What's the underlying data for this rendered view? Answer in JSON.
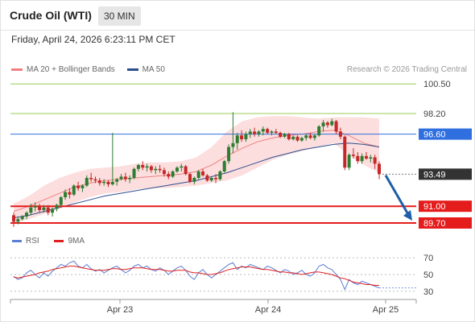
{
  "header": {
    "title": "Crude Oil (WTI)",
    "timeframe": "30 MIN",
    "timestamp": "Friday, April 24, 2026 6:23:11 PM CET"
  },
  "legend": {
    "items": [
      {
        "label": "MA 20 + Bollinger Bands",
        "color": "#f08080"
      },
      {
        "label": "MA 50",
        "color": "#2c4e8f"
      }
    ],
    "credit": "Research © 2026 Trading Central"
  },
  "rsi_legend": {
    "items": [
      {
        "label": "RSI",
        "color": "#5b7fd4"
      },
      {
        "label": "9MA",
        "color": "#e02020"
      }
    ]
  },
  "colors": {
    "bull": "#2e7d32",
    "bear": "#c62828",
    "resistance_line": "#9acd5a",
    "pivot_line": "#2f6fe0",
    "support_line": "#e51c1c",
    "last_price": "#333333",
    "arrow": "#1f5ea8"
  },
  "chart_data": [
    {
      "type": "candlestick",
      "title": "Crude Oil (WTI)",
      "interval": "30 MIN",
      "x_ticks": [
        "Apr 23",
        "Apr 24",
        "Apr 25"
      ],
      "ylim": [
        89.2,
        101.2
      ],
      "candles": [
        [
          90.3,
          90.5,
          89.4,
          89.8
        ],
        [
          89.8,
          90.2,
          89.6,
          90.0
        ],
        [
          90.0,
          90.3,
          89.9,
          90.2
        ],
        [
          90.2,
          90.6,
          90.0,
          90.5
        ],
        [
          90.5,
          91.2,
          90.3,
          90.9
        ],
        [
          90.9,
          91.3,
          90.6,
          91.0
        ],
        [
          91.0,
          91.2,
          90.5,
          90.7
        ],
        [
          90.7,
          91.1,
          90.5,
          90.9
        ],
        [
          90.9,
          91.1,
          90.3,
          90.5
        ],
        [
          90.5,
          90.9,
          90.2,
          90.8
        ],
        [
          90.8,
          91.2,
          90.6,
          91.1
        ],
        [
          91.1,
          91.8,
          91.0,
          91.7
        ],
        [
          91.7,
          92.3,
          91.5,
          92.1
        ],
        [
          92.1,
          92.4,
          91.6,
          91.9
        ],
        [
          91.9,
          92.7,
          91.8,
          92.6
        ],
        [
          92.6,
          92.9,
          92.2,
          92.4
        ],
        [
          92.4,
          92.7,
          92.1,
          92.6
        ],
        [
          92.6,
          93.4,
          92.5,
          93.2
        ],
        [
          93.2,
          93.6,
          92.9,
          93.1
        ],
        [
          93.1,
          93.3,
          92.8,
          93.0
        ],
        [
          93.0,
          93.2,
          92.6,
          92.8
        ],
        [
          92.8,
          93.1,
          92.6,
          92.9
        ],
        [
          92.9,
          93.0,
          92.5,
          92.7
        ],
        [
          92.7,
          96.7,
          92.6,
          92.9
        ],
        [
          92.9,
          93.2,
          92.6,
          93.1
        ],
        [
          93.1,
          93.5,
          93.0,
          93.3
        ],
        [
          93.3,
          93.6,
          92.9,
          93.1
        ],
        [
          93.1,
          93.4,
          92.8,
          93.2
        ],
        [
          93.2,
          94.0,
          93.1,
          93.9
        ],
        [
          93.9,
          94.3,
          93.7,
          94.2
        ],
        [
          94.2,
          94.5,
          93.8,
          94.0
        ],
        [
          94.0,
          94.3,
          93.7,
          94.1
        ],
        [
          94.1,
          94.2,
          93.6,
          93.8
        ],
        [
          93.8,
          94.1,
          93.5,
          93.9
        ],
        [
          93.9,
          94.2,
          93.6,
          93.8
        ],
        [
          93.8,
          94.0,
          93.3,
          93.5
        ],
        [
          93.5,
          93.7,
          93.1,
          93.3
        ],
        [
          93.3,
          93.8,
          93.2,
          93.7
        ],
        [
          93.7,
          94.1,
          93.6,
          94.0
        ],
        [
          94.0,
          94.3,
          93.7,
          94.1
        ],
        [
          94.1,
          94.2,
          93.4,
          93.5
        ],
        [
          93.5,
          93.6,
          92.8,
          92.9
        ],
        [
          92.9,
          93.3,
          92.7,
          93.2
        ],
        [
          93.2,
          93.8,
          93.1,
          93.7
        ],
        [
          93.7,
          93.9,
          93.3,
          93.4
        ],
        [
          93.4,
          93.5,
          92.9,
          93.0
        ],
        [
          93.0,
          93.3,
          92.9,
          93.2
        ],
        [
          93.2,
          93.5,
          92.8,
          93.1
        ],
        [
          93.1,
          93.8,
          93.0,
          93.7
        ],
        [
          93.7,
          94.6,
          93.6,
          94.5
        ],
        [
          94.5,
          95.8,
          94.3,
          95.6
        ],
        [
          95.6,
          98.3,
          95.1,
          95.9
        ],
        [
          95.9,
          96.7,
          95.4,
          96.5
        ],
        [
          96.5,
          96.9,
          96.0,
          96.2
        ],
        [
          96.2,
          96.8,
          96.0,
          96.6
        ],
        [
          96.6,
          97.0,
          96.3,
          96.8
        ],
        [
          96.8,
          97.1,
          96.4,
          96.6
        ],
        [
          96.6,
          96.9,
          96.4,
          96.8
        ],
        [
          96.8,
          97.2,
          96.5,
          97.0
        ],
        [
          97.0,
          97.1,
          96.6,
          96.7
        ],
        [
          96.7,
          96.9,
          96.5,
          96.8
        ],
        [
          96.8,
          97.0,
          96.6,
          96.7
        ],
        [
          96.7,
          96.8,
          96.3,
          96.4
        ],
        [
          96.4,
          96.7,
          96.3,
          96.6
        ],
        [
          96.6,
          96.7,
          96.1,
          96.2
        ],
        [
          96.2,
          96.5,
          96.1,
          96.4
        ],
        [
          96.4,
          96.5,
          96.0,
          96.1
        ],
        [
          96.1,
          96.4,
          96.0,
          96.3
        ],
        [
          96.3,
          96.6,
          96.1,
          96.5
        ],
        [
          96.5,
          96.7,
          96.2,
          96.3
        ],
        [
          96.3,
          96.6,
          96.1,
          96.5
        ],
        [
          96.5,
          97.3,
          96.4,
          97.2
        ],
        [
          97.2,
          97.7,
          96.8,
          97.5
        ],
        [
          97.5,
          97.6,
          97.1,
          97.3
        ],
        [
          97.3,
          97.8,
          97.2,
          97.6
        ],
        [
          97.6,
          97.7,
          96.6,
          96.8
        ],
        [
          96.8,
          97.1,
          96.2,
          96.4
        ],
        [
          96.4,
          96.5,
          93.8,
          94.0
        ],
        [
          94.0,
          95.1,
          93.8,
          95.0
        ],
        [
          95.0,
          95.5,
          94.7,
          94.9
        ],
        [
          94.9,
          95.2,
          94.3,
          94.5
        ],
        [
          94.5,
          95.1,
          94.3,
          94.9
        ],
        [
          94.9,
          95.2,
          94.6,
          94.7
        ],
        [
          94.7,
          95.0,
          94.4,
          94.8
        ],
        [
          94.8,
          95.0,
          93.9,
          94.3
        ],
        [
          94.3,
          94.5,
          93.1,
          93.49
        ]
      ],
      "bollinger": {
        "ma20": [
          90.6,
          91.0,
          91.5,
          92.0,
          92.5,
          92.8,
          93.0,
          93.1,
          93.2,
          93.3,
          93.4,
          93.5,
          93.7,
          94.2,
          94.9,
          95.5,
          96.0,
          96.3,
          96.5,
          96.6,
          96.8,
          96.9,
          96.5,
          95.9,
          95.6
        ],
        "upper": [
          91.2,
          91.8,
          92.6,
          93.2,
          93.6,
          93.9,
          94.0,
          94.1,
          94.3,
          94.4,
          94.4,
          94.5,
          94.8,
          95.6,
          96.8,
          97.6,
          97.9,
          98.0,
          98.0,
          97.9,
          97.8,
          97.9,
          97.9,
          97.9,
          97.8
        ],
        "lower": [
          89.7,
          90.0,
          90.4,
          90.8,
          91.3,
          91.7,
          92.0,
          92.1,
          92.3,
          92.4,
          92.4,
          92.5,
          92.6,
          92.8,
          93.0,
          93.4,
          94.0,
          94.6,
          95.0,
          95.3,
          95.6,
          95.9,
          95.0,
          94.2,
          93.6
        ]
      },
      "ma50": [
        90.1,
        90.3,
        90.6,
        90.9,
        91.2,
        91.5,
        91.8,
        92.0,
        92.2,
        92.4,
        92.6,
        92.8,
        93.0,
        93.3,
        93.6,
        94.0,
        94.4,
        94.8,
        95.1,
        95.4,
        95.6,
        95.8,
        95.9,
        95.8,
        95.6
      ],
      "levels": [
        {
          "label": "100.50",
          "value": 100.5,
          "role": "resistance"
        },
        {
          "label": "98.20",
          "value": 98.2,
          "role": "resistance"
        },
        {
          "label": "96.60",
          "value": 96.6,
          "role": "pivot"
        },
        {
          "label": "93.49",
          "value": 93.49,
          "role": "last"
        },
        {
          "label": "91.00",
          "value": 91.0,
          "role": "support"
        },
        {
          "label": "89.70",
          "value": 89.7,
          "role": "support"
        }
      ],
      "forecast_arrow": {
        "from": 93.4,
        "to": 89.7
      }
    },
    {
      "type": "line",
      "title": "RSI",
      "ylim": [
        25,
        75
      ],
      "yticks": [
        70,
        50,
        30
      ],
      "series": [
        {
          "name": "RSI",
          "values": [
            48,
            44,
            46,
            52,
            55,
            50,
            46,
            52,
            48,
            54,
            58,
            62,
            60,
            64,
            66,
            60,
            58,
            62,
            57,
            54,
            56,
            52,
            55,
            58,
            60,
            56,
            52,
            55,
            60,
            62,
            58,
            60,
            56,
            54,
            58,
            55,
            50,
            54,
            58,
            60,
            55,
            48,
            44,
            52,
            56,
            50,
            46,
            50,
            54,
            58,
            62,
            64,
            56,
            60,
            58,
            62,
            60,
            58,
            56,
            60,
            58,
            55,
            52,
            56,
            54,
            50,
            52,
            55,
            50,
            48,
            52,
            60,
            62,
            58,
            56,
            50,
            44,
            32,
            44,
            40,
            38,
            42,
            40,
            38,
            36,
            34
          ]
        },
        {
          "name": "9MA",
          "values": [
            47,
            46,
            47,
            48,
            49,
            50,
            52,
            53,
            54,
            56,
            57,
            58,
            59,
            60,
            60,
            59,
            58,
            57,
            56,
            55,
            55,
            55,
            56,
            57,
            57,
            56,
            56,
            57,
            58,
            58,
            58,
            57,
            56,
            56,
            56,
            55,
            54,
            54,
            55,
            55,
            55,
            53,
            52,
            52,
            51,
            50,
            50,
            51,
            52,
            54,
            56,
            57,
            58,
            59,
            59,
            59,
            58,
            57,
            56,
            56,
            55,
            54,
            53,
            53,
            52,
            52,
            51,
            50,
            51,
            52,
            53,
            53,
            52,
            51,
            50,
            48,
            46,
            45,
            43,
            41,
            40,
            39,
            38,
            38,
            37,
            37
          ]
        }
      ]
    }
  ]
}
